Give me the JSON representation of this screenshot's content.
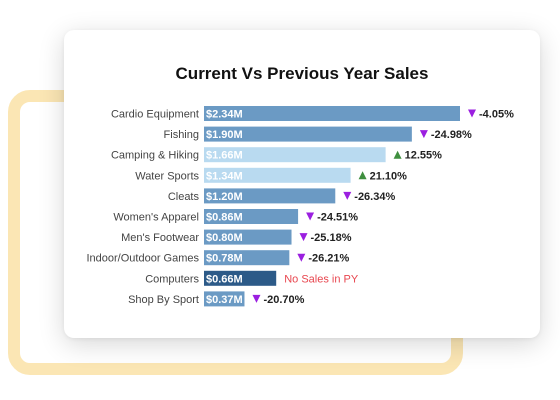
{
  "chart_data": {
    "type": "bar",
    "orientation": "horizontal",
    "title": "Current Vs Previous Year Sales",
    "categories": [
      "Cardio Equipment",
      "Fishing",
      "Camping & Hiking",
      "Water Sports",
      "Cleats",
      "Women's Apparel",
      "Men's Footwear",
      "Indoor/Outdoor Games",
      "Computers",
      "Shop By Sport"
    ],
    "values": [
      2.34,
      1.9,
      1.66,
      1.34,
      1.2,
      0.86,
      0.8,
      0.78,
      0.66,
      0.37
    ],
    "value_labels": [
      "$2.34M",
      "$1.90M",
      "$1.66M",
      "$1.34M",
      "$1.20M",
      "$0.86M",
      "$0.80M",
      "$0.78M",
      "$0.66M",
      "$0.37M"
    ],
    "change_labels": [
      "-4.05%",
      "-24.98%",
      "12.55%",
      "21.10%",
      "-26.34%",
      "-24.51%",
      "-25.18%",
      "-26.21%",
      "No Sales in PY",
      "-20.70%"
    ],
    "change_direction": [
      "down",
      "down",
      "up",
      "up",
      "down",
      "down",
      "down",
      "down",
      "none",
      "down"
    ],
    "xlim": [
      0,
      2.34
    ],
    "grid": false,
    "colors": {
      "bar_default": "#6b9ac4",
      "bar_highlight_up": "#b9daf0",
      "bar_no_py": "#2c5a88",
      "label_on_dark": "#ffffff",
      "label_on_light": "#ffffff",
      "arrow_down": "#9b1fe0",
      "arrow_up": "#3f8f3f",
      "no_sales_text": "#e8464f"
    }
  }
}
